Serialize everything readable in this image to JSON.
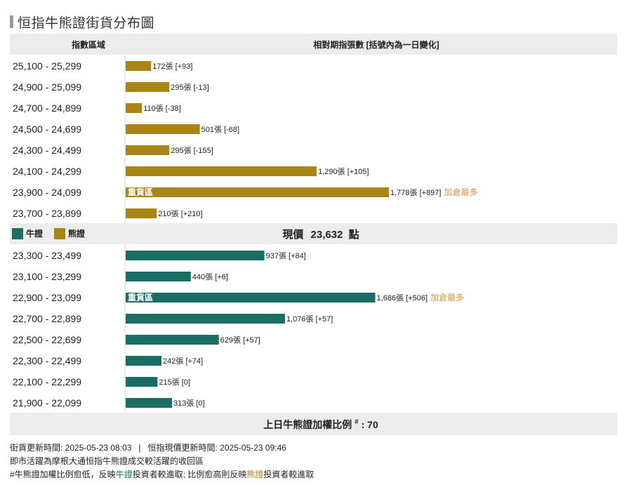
{
  "title": "恒指牛熊證街貨分布圖",
  "header": {
    "range_label": "指數區域",
    "count_label": "相對期指張數 [括號內為一日變化]"
  },
  "legend": {
    "bull_label": "牛證",
    "bear_label": "熊證"
  },
  "current_price": {
    "prefix": "現價",
    "value": "23,632",
    "suffix": "點"
  },
  "ratio": {
    "label": "上日牛熊證加權比例",
    "mark": "#",
    "value": ": 70"
  },
  "colors": {
    "bull": "#1b6e64",
    "bear": "#a98416",
    "highlight": "#e8913a",
    "band": "#ececec"
  },
  "chart_data": {
    "type": "bar",
    "orientation": "horizontal",
    "unit": "張",
    "xlim": [
      0,
      2400
    ],
    "series": [
      {
        "name": "熊證",
        "rows": [
          {
            "range": "25,100 - 25,299",
            "value": 172,
            "change": "+93",
            "label": "172張 [+93]"
          },
          {
            "range": "24,900 - 25,099",
            "value": 295,
            "change": "-13",
            "label": "295張 [-13]"
          },
          {
            "range": "24,700 - 24,899",
            "value": 110,
            "change": "-38",
            "label": "110張 [-38]"
          },
          {
            "range": "24,500 - 24,699",
            "value": 501,
            "change": "-68",
            "label": "501張 [-68]"
          },
          {
            "range": "24,300 - 24,499",
            "value": 295,
            "change": "-155",
            "label": "295張 [-155]"
          },
          {
            "range": "24,100 - 24,299",
            "value": 1290,
            "change": "+105",
            "label": "1,290張 [+105]"
          },
          {
            "range": "23,900 - 24,099",
            "value": 1778,
            "change": "+897",
            "label": "1,778張 [+897]",
            "inside": "重貨區",
            "note": "加倉最多"
          },
          {
            "range": "23,700 - 23,899",
            "value": 210,
            "change": "+210",
            "label": "210張 [+210]"
          }
        ]
      },
      {
        "name": "牛證",
        "rows": [
          {
            "range": "23,300 - 23,499",
            "value": 937,
            "change": "+84",
            "label": "937張 [+84]"
          },
          {
            "range": "23,100 - 23,299",
            "value": 440,
            "change": "+6",
            "label": "440張 [+6]"
          },
          {
            "range": "22,900 - 23,099",
            "value": 1686,
            "change": "+506",
            "label": "1,686張 [+506]",
            "inside": "重貨區",
            "note": "加倉最多"
          },
          {
            "range": "22,700 - 22,899",
            "value": 1076,
            "change": "+57",
            "label": "1,076張 [+57]"
          },
          {
            "range": "22,500 - 22,699",
            "value": 629,
            "change": "+57",
            "label": "629張 [+57]"
          },
          {
            "range": "22,300 - 22,499",
            "value": 242,
            "change": "+74",
            "label": "242張 [+74]"
          },
          {
            "range": "22,100 - 22,299",
            "value": 215,
            "change": "0",
            "label": "215張 [0]"
          },
          {
            "range": "21,900 - 22,099",
            "value": 313,
            "change": "0",
            "label": "313張 [0]"
          }
        ]
      }
    ]
  },
  "footer": {
    "update_time": "街貨更新時間: 2025-05-23 08:03",
    "separator": "|",
    "price_time": "恒指現價更新時間: 2025-05-23 09:46",
    "line2": "即市活躍為摩根大通恒指牛熊證成交較活躍的收回區",
    "line3_a": "#牛熊證加權比例愈低，反映",
    "line3_bull": "牛證",
    "line3_b": "投資者較進取; 比例愈高則反映",
    "line3_bear": "熊證",
    "line3_c": "投資者較進取"
  }
}
